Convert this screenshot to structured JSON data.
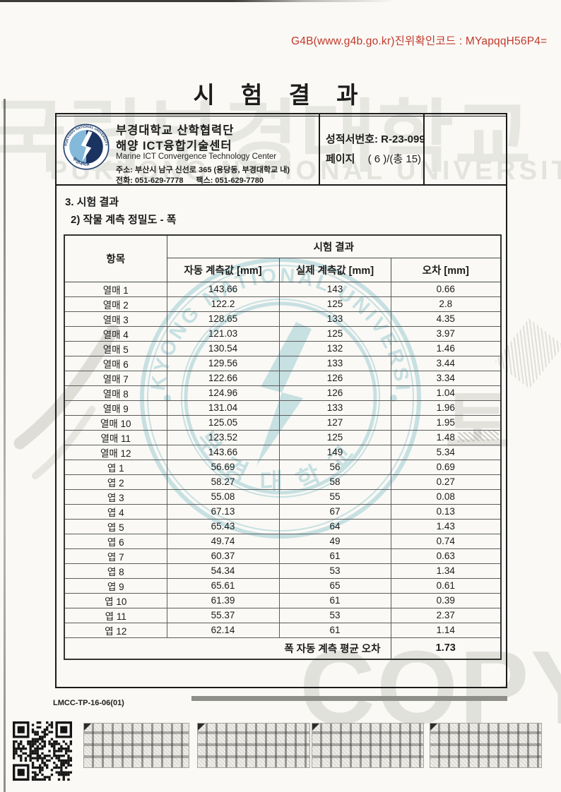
{
  "colors": {
    "verification_red": "#c0392b",
    "logo_light_blue": "#85b9d9",
    "logo_navy": "#1b3361",
    "seal_teal": "#9fcdd3",
    "watermark_gray": "#e4e4df"
  },
  "topbar": {
    "verification_code": "G4B(www.g4b.go.kr)진위확인코드 : MYapqqH56P4="
  },
  "title": "시 험 결 과",
  "header": {
    "org_line1": "부경대학교 산학협력단",
    "org_line2": "해양 ICT융합기술센터",
    "org_en": "Marine ICT Convergence Technology Center",
    "address": "주소: 부산시 남구 신선로 365 (용당동, 부경대학교 내)",
    "phone": "전화: 051-629-7778",
    "fax": "팩스: 051-629-7780",
    "report_no_label": "성적서번호:",
    "report_no_value": "R-23-099",
    "page_label": "페이지",
    "page_value": "( 6 )/(총 15)"
  },
  "section": {
    "heading": "3. 시험 결과",
    "subheading": "2) 작물 계측 정밀도 - 폭"
  },
  "table": {
    "item_header": "항목",
    "group_header": "시험 결과",
    "columns": [
      "자동 계측값 [mm]",
      "실제 계측값 [mm]",
      "오차 [mm]"
    ],
    "rows": [
      {
        "item": "열매 1",
        "auto": "143.66",
        "actual": "143",
        "error": "0.66"
      },
      {
        "item": "열매 2",
        "auto": "122.2",
        "actual": "125",
        "error": "2.8"
      },
      {
        "item": "열매 3",
        "auto": "128.65",
        "actual": "133",
        "error": "4.35"
      },
      {
        "item": "열매 4",
        "auto": "121.03",
        "actual": "125",
        "error": "3.97"
      },
      {
        "item": "열매 5",
        "auto": "130.54",
        "actual": "132",
        "error": "1.46"
      },
      {
        "item": "열매 6",
        "auto": "129.56",
        "actual": "133",
        "error": "3.44"
      },
      {
        "item": "열매 7",
        "auto": "122.66",
        "actual": "126",
        "error": "3.34"
      },
      {
        "item": "열매 8",
        "auto": "124.96",
        "actual": "126",
        "error": "1.04"
      },
      {
        "item": "열매 9",
        "auto": "131.04",
        "actual": "133",
        "error": "1.96"
      },
      {
        "item": "열매 10",
        "auto": "125.05",
        "actual": "127",
        "error": "1.95"
      },
      {
        "item": "열매 11",
        "auto": "123.52",
        "actual": "125",
        "error": "1.48"
      },
      {
        "item": "열매 12",
        "auto": "143.66",
        "actual": "149",
        "error": "5.34"
      },
      {
        "item": "엽 1",
        "auto": "56.69",
        "actual": "56",
        "error": "0.69"
      },
      {
        "item": "엽 2",
        "auto": "58.27",
        "actual": "58",
        "error": "0.27"
      },
      {
        "item": "엽 3",
        "auto": "55.08",
        "actual": "55",
        "error": "0.08"
      },
      {
        "item": "엽 4",
        "auto": "67.13",
        "actual": "67",
        "error": "0.13"
      },
      {
        "item": "엽 5",
        "auto": "65.43",
        "actual": "64",
        "error": "1.43"
      },
      {
        "item": "엽 6",
        "auto": "49.74",
        "actual": "49",
        "error": "0.74"
      },
      {
        "item": "엽 7",
        "auto": "60.37",
        "actual": "61",
        "error": "0.63"
      },
      {
        "item": "엽 8",
        "auto": "54.34",
        "actual": "53",
        "error": "1.34"
      },
      {
        "item": "엽 9",
        "auto": "65.61",
        "actual": "65",
        "error": "0.61"
      },
      {
        "item": "엽 10",
        "auto": "61.39",
        "actual": "61",
        "error": "0.39"
      },
      {
        "item": "엽 11",
        "auto": "55.37",
        "actual": "53",
        "error": "2.37"
      },
      {
        "item": "엽 12",
        "auto": "62.14",
        "actual": "61",
        "error": "1.14"
      }
    ],
    "summary_label": "폭 자동 계측 평균 오차",
    "summary_value": "1.73"
  },
  "footer": {
    "form_code": "LMCC-TP-16-06(01)"
  },
  "watermarks": {
    "big_korean": "국립부경대학교",
    "university_en": "PUKYONG NATIONAL UNIVERSITY",
    "seal_ring_text": "PUKYONG NATIONAL UNIVERSITY",
    "seal_bottom_text": "부경대학교",
    "side_glyph": "토",
    "copy_text": "COPY"
  }
}
